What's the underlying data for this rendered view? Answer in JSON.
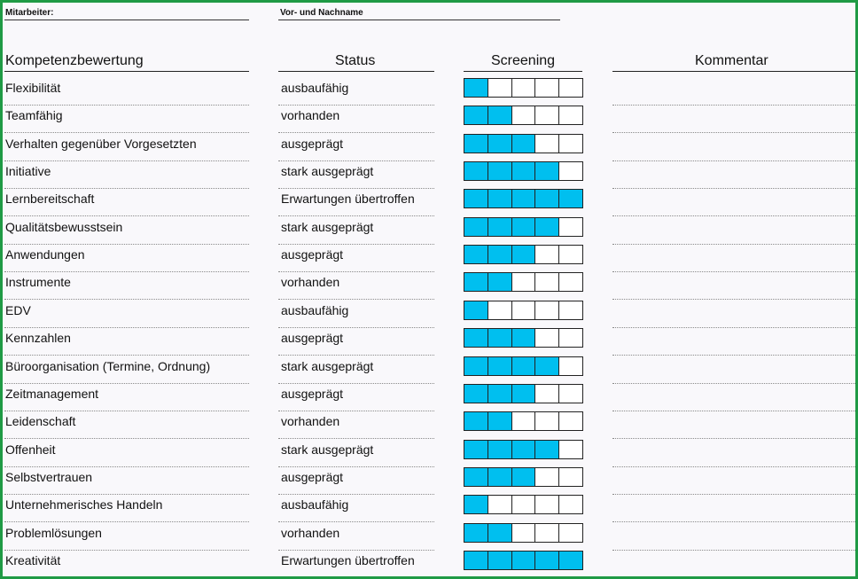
{
  "header": {
    "employee_label": "Mitarbeiter:",
    "name_label": "Vor- und Nachname"
  },
  "columns": {
    "competence": "Kompetenzbewertung",
    "status": "Status",
    "screening": "Screening",
    "comment": "Kommentar"
  },
  "scale_max": 5,
  "colors": {
    "filled": "#00bfef",
    "frame": "#1f9a45"
  },
  "rows": [
    {
      "competence": "Flexibilität",
      "status": "ausbaufähig",
      "level": 1
    },
    {
      "competence": "Teamfähig",
      "status": "vorhanden",
      "level": 2
    },
    {
      "competence": "Verhalten gegenüber Vorgesetzten",
      "status": "ausgeprägt",
      "level": 3
    },
    {
      "competence": "Initiative",
      "status": "stark ausgeprägt",
      "level": 4
    },
    {
      "competence": "Lernbereitschaft",
      "status": "Erwartungen übertroffen",
      "level": 5
    },
    {
      "competence": "Qualitätsbewusstsein",
      "status": "stark ausgeprägt",
      "level": 4
    },
    {
      "competence": "Anwendungen",
      "status": "ausgeprägt",
      "level": 3
    },
    {
      "competence": "Instrumente",
      "status": "vorhanden",
      "level": 2
    },
    {
      "competence": "EDV",
      "status": "ausbaufähig",
      "level": 1
    },
    {
      "competence": "Kennzahlen",
      "status": "ausgeprägt",
      "level": 3
    },
    {
      "competence": "Büroorganisation (Termine, Ordnung)",
      "status": "stark ausgeprägt",
      "level": 4
    },
    {
      "competence": "Zeitmanagement",
      "status": "ausgeprägt",
      "level": 3
    },
    {
      "competence": "Leidenschaft",
      "status": "vorhanden",
      "level": 2
    },
    {
      "competence": "Offenheit",
      "status": "stark ausgeprägt",
      "level": 4
    },
    {
      "competence": "Selbstvertrauen",
      "status": "ausgeprägt",
      "level": 3
    },
    {
      "competence": "Unternehmerisches Handeln",
      "status": "ausbaufähig",
      "level": 1
    },
    {
      "competence": "Problemlösungen",
      "status": "vorhanden",
      "level": 2
    },
    {
      "competence": "Kreativität",
      "status": "Erwartungen übertroffen",
      "level": 5
    }
  ]
}
